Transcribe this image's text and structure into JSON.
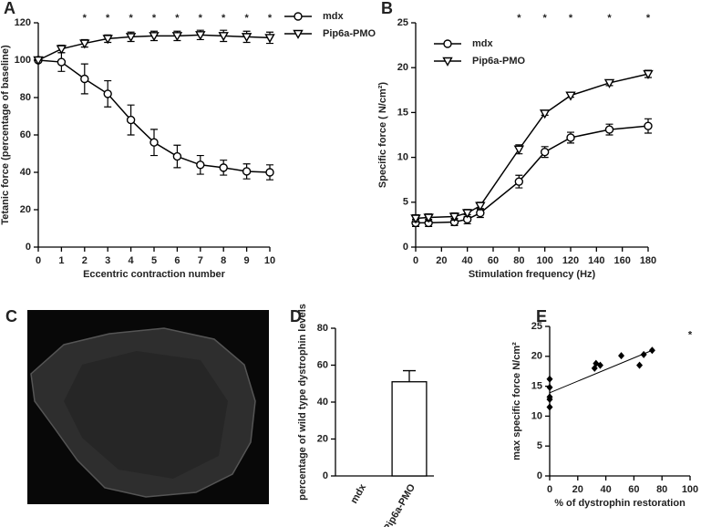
{
  "image_panel": {
    "panel": "C"
  },
  "chart_data": [
    {
      "type": "line",
      "panel": "A",
      "xlabel": "Eccentric contraction number",
      "ylabel": "Tetanic force (percentage of baseline)",
      "x": [
        0,
        1,
        2,
        3,
        4,
        5,
        6,
        7,
        8,
        9,
        10
      ],
      "xlim": [
        0,
        10
      ],
      "xticks": [
        0,
        1,
        2,
        3,
        4,
        5,
        6,
        7,
        8,
        9,
        10
      ],
      "ylim": [
        0,
        120
      ],
      "yticks": [
        0,
        20,
        40,
        60,
        80,
        100,
        120
      ],
      "legend": "upper right",
      "series": [
        {
          "name": "mdx",
          "marker": "circle",
          "color": "#000000",
          "values": [
            100,
            99,
            90,
            82,
            68,
            56,
            48.5,
            44,
            42.5,
            40.5,
            40
          ],
          "errors": [
            0,
            5,
            8,
            7,
            8,
            7,
            6,
            5,
            4,
            4,
            4
          ]
        },
        {
          "name": "Pip6a-PMO",
          "marker": "triangle-down",
          "color": "#000000",
          "values": [
            100,
            106,
            109,
            111.5,
            112.5,
            113,
            113,
            113.5,
            113,
            112.5,
            112
          ],
          "errors": [
            0,
            2,
            2,
            2,
            2.5,
            2.5,
            2.5,
            2.5,
            3,
            3,
            3
          ]
        }
      ],
      "annotations": [
        {
          "x": 2,
          "label": "*"
        },
        {
          "x": 3,
          "label": "*"
        },
        {
          "x": 4,
          "label": "*"
        },
        {
          "x": 5,
          "label": "*"
        },
        {
          "x": 6,
          "label": "*"
        },
        {
          "x": 7,
          "label": "*"
        },
        {
          "x": 8,
          "label": "*"
        },
        {
          "x": 9,
          "label": "*"
        },
        {
          "x": 10,
          "label": "*"
        }
      ]
    },
    {
      "type": "line",
      "panel": "B",
      "xlabel": "Stimulation frequency (Hz)",
      "ylabel": "Specific force ( N/cm²)",
      "x": [
        0,
        10,
        30,
        40,
        50,
        80,
        100,
        120,
        150,
        180
      ],
      "xlim": [
        0,
        180
      ],
      "xticks": [
        0,
        20,
        40,
        60,
        80,
        100,
        120,
        140,
        160,
        180
      ],
      "ylim": [
        0,
        25
      ],
      "yticks": [
        0,
        5,
        10,
        15,
        20,
        25
      ],
      "legend": "upper left",
      "series": [
        {
          "name": "mdx",
          "marker": "circle",
          "color": "#000000",
          "values": [
            2.7,
            2.7,
            2.8,
            3.1,
            3.8,
            7.3,
            10.6,
            12.2,
            13.1,
            13.5
          ],
          "errors": [
            0.4,
            0.4,
            0.4,
            0.5,
            0.5,
            0.7,
            0.6,
            0.6,
            0.6,
            0.8
          ]
        },
        {
          "name": "Pip6a-PMO",
          "marker": "triangle-down",
          "color": "#000000",
          "values": [
            3.2,
            3.3,
            3.4,
            3.8,
            4.6,
            10.9,
            14.9,
            16.9,
            18.3,
            19.3
          ],
          "errors": [
            0.4,
            0.4,
            0.4,
            0.4,
            0.4,
            0.5,
            0.2,
            0.2,
            0.3,
            0.4
          ]
        }
      ],
      "annotations": [
        {
          "x": 80,
          "label": "*"
        },
        {
          "x": 100,
          "label": "*"
        },
        {
          "x": 120,
          "label": "*"
        },
        {
          "x": 150,
          "label": "*"
        },
        {
          "x": 180,
          "label": "*"
        }
      ]
    },
    {
      "type": "bar",
      "panel": "D",
      "ylabel": "percentage of wild type dystrophin levels",
      "categories": [
        "mdx",
        "Pip6a-PMO"
      ],
      "values": [
        0,
        51
      ],
      "errors": [
        0,
        6
      ],
      "color": "#ffffff",
      "ylim": [
        0,
        80
      ],
      "yticks": [
        0,
        20,
        40,
        60,
        80
      ]
    },
    {
      "type": "scatter",
      "panel": "E",
      "xlabel": "% of dystrophin restoration",
      "ylabel": "max specific force N/cm²",
      "x": [
        0,
        0,
        0,
        0,
        0,
        32,
        33,
        36,
        51,
        64,
        67,
        73
      ],
      "values": [
        16.2,
        14.8,
        13.2,
        12.8,
        11.5,
        18,
        18.8,
        18.5,
        20.1,
        18.5,
        20.3,
        21
      ],
      "color": "#000000",
      "trendline": {
        "x": [
          0,
          73
        ],
        "values": [
          13.9,
          21
        ]
      },
      "xlim": [
        0,
        100
      ],
      "xticks": [
        0,
        20,
        40,
        60,
        80,
        100
      ],
      "ylim": [
        0,
        25
      ],
      "yticks": [
        0,
        5,
        10,
        15,
        20,
        25
      ],
      "annotations": [
        {
          "x": 100,
          "y": 23.5,
          "label": "*"
        }
      ]
    }
  ]
}
